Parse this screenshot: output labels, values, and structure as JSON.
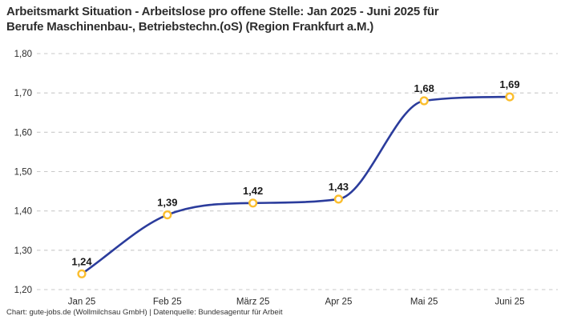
{
  "header": {
    "title_line1": "Arbeitsmarkt Situation - Arbeitslose pro offene Stelle: Jan 2025 - Juni 2025 für",
    "title_line2": "Berufe Maschinenbau-, Betriebstechn.(oS) (Region Frankfurt a.M.)"
  },
  "footer": {
    "credit": "Chart: gute-jobs.de (Wollmilchsau GmbH) | Datenquelle: Bundesagentur für Arbeit"
  },
  "chart_data": {
    "type": "line",
    "title": "Arbeitsmarkt Situation - Arbeitslose pro offene Stelle: Jan 2025 - Juni 2025 für Berufe Maschinenbau-, Betriebstechn.(oS) (Region Frankfurt a.M.)",
    "categories": [
      "Jan 25",
      "Feb 25",
      "März 25",
      "Apr 25",
      "Mai 25",
      "Juni 25"
    ],
    "values": [
      1.24,
      1.39,
      1.42,
      1.43,
      1.68,
      1.69
    ],
    "value_labels": [
      "1,24",
      "1,39",
      "1,42",
      "1,43",
      "1,68",
      "1,69"
    ],
    "ylim": [
      1.2,
      1.8
    ],
    "y_ticks": [
      {
        "value": 1.8,
        "label": "1,80"
      },
      {
        "value": 1.7,
        "label": "1,70"
      },
      {
        "value": 1.6,
        "label": "1,60"
      },
      {
        "value": 1.5,
        "label": "1,50"
      },
      {
        "value": 1.4,
        "label": "1,40"
      },
      {
        "value": 1.3,
        "label": "1,30"
      },
      {
        "value": 1.2,
        "label": "1,20"
      }
    ],
    "grid": "horizontal-dashed",
    "legend": "none",
    "curve": "monotone",
    "colors": {
      "line": "#2B3C9C",
      "marker_stroke": "#FBBE2E",
      "marker_fill": "#FFFFFF",
      "grid": "#C9C9C9",
      "tick_label": "#2B2B2B",
      "data_label": "#1A1A1A",
      "title": "#2D2D2D",
      "footer": "#333333",
      "background": "#FFFFFF"
    }
  }
}
